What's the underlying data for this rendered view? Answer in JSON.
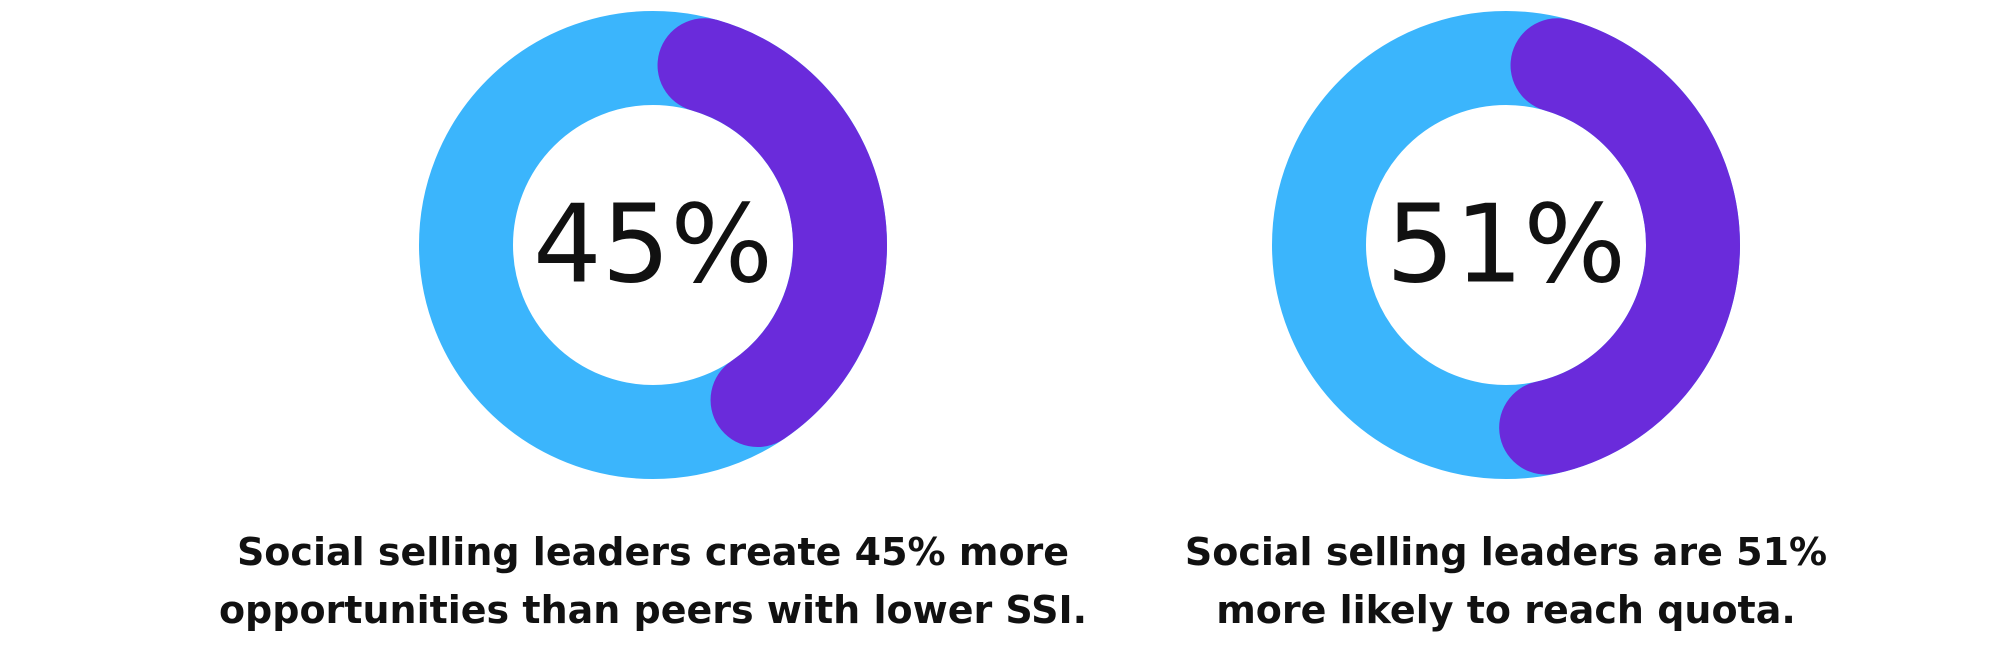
{
  "colors": {
    "track": "#3BB5FC",
    "fill": "#6A2BDB",
    "background": "#FFFFFF",
    "text": "#111111"
  },
  "chart_data": [
    {
      "type": "pie",
      "style": "donut",
      "value_percent": 45,
      "center_label": "45%",
      "caption": [
        "Social selling leaders create 45% more",
        "opportunities than peers with lower SSI."
      ]
    },
    {
      "type": "pie",
      "style": "donut",
      "value_percent": 51,
      "center_label": "51%",
      "caption": [
        "Social selling leaders are 51%",
        "more likely to reach quota."
      ]
    }
  ]
}
